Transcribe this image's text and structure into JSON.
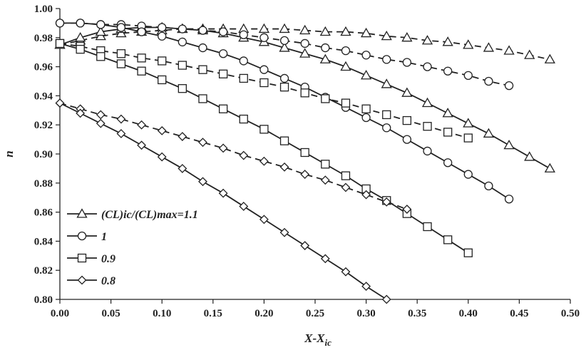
{
  "chart_data": {
    "type": "line",
    "xlabel": "X-X",
    "xlabel_subscript": "ic",
    "ylabel": "n",
    "xlim": [
      0,
      0.5
    ],
    "ylim": [
      0.8,
      1.0
    ],
    "x_ticks": [
      "0.00",
      "0.05",
      "0.10",
      "0.15",
      "0.20",
      "0.25",
      "0.30",
      "0.35",
      "0.40",
      "0.45",
      "0.50"
    ],
    "y_ticks": [
      "0.80",
      "0.82",
      "0.84",
      "0.86",
      "0.88",
      "0.90",
      "0.92",
      "0.94",
      "0.96",
      "0.98",
      "1.00"
    ],
    "grid": false,
    "legend_position": "bottom-left",
    "series": [
      {
        "name": "(CL)ic/(CL)max=1.1",
        "marker": "triangle",
        "curves": [
          {
            "style": "dashed",
            "x": [
              0.0,
              0.02,
              0.04,
              0.06,
              0.08,
              0.1,
              0.12,
              0.14,
              0.16,
              0.18,
              0.2,
              0.22,
              0.24,
              0.26,
              0.28,
              0.3,
              0.32,
              0.34,
              0.36,
              0.38,
              0.4,
              0.42,
              0.44,
              0.46,
              0.48
            ],
            "y": [
              0.975,
              0.978,
              0.981,
              0.983,
              0.984,
              0.985,
              0.986,
              0.986,
              0.986,
              0.986,
              0.986,
              0.986,
              0.985,
              0.984,
              0.984,
              0.983,
              0.981,
              0.98,
              0.978,
              0.977,
              0.975,
              0.973,
              0.971,
              0.968,
              0.965
            ]
          },
          {
            "style": "solid",
            "x": [
              0.0,
              0.02,
              0.04,
              0.06,
              0.08,
              0.1,
              0.12,
              0.14,
              0.16,
              0.18,
              0.2,
              0.22,
              0.24,
              0.26,
              0.28,
              0.3,
              0.32,
              0.34,
              0.36,
              0.38,
              0.4,
              0.42,
              0.44,
              0.46,
              0.48
            ],
            "y": [
              0.975,
              0.98,
              0.984,
              0.986,
              0.987,
              0.987,
              0.986,
              0.985,
              0.983,
              0.98,
              0.977,
              0.973,
              0.969,
              0.965,
              0.96,
              0.954,
              0.948,
              0.942,
              0.935,
              0.928,
              0.921,
              0.914,
              0.906,
              0.898,
              0.89
            ]
          }
        ]
      },
      {
        "name": "1",
        "marker": "circle",
        "curves": [
          {
            "style": "dashed",
            "x": [
              0.0,
              0.02,
              0.04,
              0.06,
              0.08,
              0.1,
              0.12,
              0.14,
              0.16,
              0.18,
              0.2,
              0.22,
              0.24,
              0.26,
              0.28,
              0.3,
              0.32,
              0.34,
              0.36,
              0.38,
              0.4,
              0.42,
              0.44
            ],
            "y": [
              0.99,
              0.99,
              0.989,
              0.989,
              0.988,
              0.987,
              0.986,
              0.985,
              0.984,
              0.982,
              0.98,
              0.978,
              0.976,
              0.973,
              0.971,
              0.968,
              0.965,
              0.963,
              0.96,
              0.957,
              0.954,
              0.95,
              0.947
            ]
          },
          {
            "style": "solid",
            "x": [
              0.0,
              0.02,
              0.04,
              0.06,
              0.08,
              0.1,
              0.12,
              0.14,
              0.16,
              0.18,
              0.2,
              0.22,
              0.24,
              0.26,
              0.28,
              0.3,
              0.32,
              0.34,
              0.36,
              0.38,
              0.4,
              0.42,
              0.44
            ],
            "y": [
              0.99,
              0.99,
              0.989,
              0.987,
              0.984,
              0.981,
              0.977,
              0.973,
              0.969,
              0.964,
              0.958,
              0.952,
              0.946,
              0.939,
              0.932,
              0.925,
              0.918,
              0.91,
              0.902,
              0.894,
              0.886,
              0.878,
              0.869
            ]
          }
        ]
      },
      {
        "name": "0.9",
        "marker": "square",
        "curves": [
          {
            "style": "dashed",
            "x": [
              0.0,
              0.02,
              0.04,
              0.06,
              0.08,
              0.1,
              0.12,
              0.14,
              0.16,
              0.18,
              0.2,
              0.22,
              0.24,
              0.26,
              0.28,
              0.3,
              0.32,
              0.34,
              0.36,
              0.38,
              0.4
            ],
            "y": [
              0.976,
              0.974,
              0.971,
              0.969,
              0.966,
              0.964,
              0.961,
              0.958,
              0.955,
              0.952,
              0.949,
              0.946,
              0.942,
              0.938,
              0.935,
              0.931,
              0.927,
              0.923,
              0.919,
              0.915,
              0.911
            ]
          },
          {
            "style": "solid",
            "x": [
              0.0,
              0.02,
              0.04,
              0.06,
              0.08,
              0.1,
              0.12,
              0.14,
              0.16,
              0.18,
              0.2,
              0.22,
              0.24,
              0.26,
              0.28,
              0.3,
              0.32,
              0.34,
              0.36,
              0.38,
              0.4
            ],
            "y": [
              0.976,
              0.972,
              0.967,
              0.962,
              0.957,
              0.951,
              0.945,
              0.938,
              0.931,
              0.924,
              0.917,
              0.909,
              0.901,
              0.893,
              0.885,
              0.876,
              0.868,
              0.859,
              0.85,
              0.841,
              0.832
            ]
          }
        ]
      },
      {
        "name": "0.8",
        "marker": "diamond",
        "curves": [
          {
            "style": "dashed",
            "x": [
              0.0,
              0.02,
              0.04,
              0.06,
              0.08,
              0.1,
              0.12,
              0.14,
              0.16,
              0.18,
              0.2,
              0.22,
              0.24,
              0.26,
              0.28,
              0.3,
              0.32,
              0.34
            ],
            "y": [
              0.935,
              0.931,
              0.927,
              0.924,
              0.92,
              0.916,
              0.912,
              0.908,
              0.904,
              0.899,
              0.895,
              0.891,
              0.886,
              0.882,
              0.877,
              0.872,
              0.867,
              0.862
            ]
          },
          {
            "style": "solid",
            "x": [
              0.0,
              0.02,
              0.04,
              0.06,
              0.08,
              0.1,
              0.12,
              0.14,
              0.16,
              0.18,
              0.2,
              0.22,
              0.24,
              0.26,
              0.28,
              0.3,
              0.32
            ],
            "y": [
              0.935,
              0.928,
              0.921,
              0.914,
              0.906,
              0.898,
              0.89,
              0.881,
              0.873,
              0.864,
              0.855,
              0.846,
              0.837,
              0.828,
              0.819,
              0.809,
              0.8
            ]
          }
        ]
      }
    ]
  }
}
